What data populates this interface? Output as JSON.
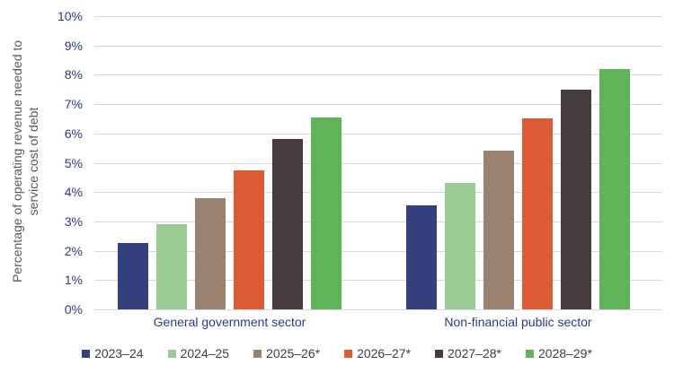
{
  "chart_data": {
    "type": "bar",
    "title": "",
    "ylabel_lines": [
      "Percentage of operating revenue needed to",
      "service cost of debt"
    ],
    "categories": [
      "General government sector",
      "Non-financial public sector"
    ],
    "series": [
      {
        "name": "2023–24",
        "color": "#343f7d",
        "values": [
          2.25,
          3.55
        ]
      },
      {
        "name": "2024–25",
        "color": "#9bcb94",
        "values": [
          2.9,
          4.3
        ]
      },
      {
        "name": "2025–26*",
        "color": "#9a8270",
        "values": [
          3.8,
          5.4
        ]
      },
      {
        "name": "2026–27*",
        "color": "#dc5b35",
        "values": [
          4.75,
          6.5
        ]
      },
      {
        "name": "2027–28*",
        "color": "#443c3d",
        "values": [
          5.8,
          7.5
        ]
      },
      {
        "name": "2028–29*",
        "color": "#5fb457",
        "values": [
          6.55,
          8.2
        ]
      }
    ],
    "y_ticks": [
      "0%",
      "1%",
      "2%",
      "3%",
      "4%",
      "5%",
      "6%",
      "7%",
      "8%",
      "9%",
      "10%"
    ],
    "ylim": [
      0,
      10
    ],
    "grid": true,
    "legend_position": "bottom"
  },
  "style_colors": {
    "gridline": "#d9d9d9",
    "tick_text": "#2b3990",
    "category_text": "#2b3990",
    "axis_title_text": "#595959",
    "legend_text": "#3f3f3f",
    "background": "#ffffff"
  }
}
